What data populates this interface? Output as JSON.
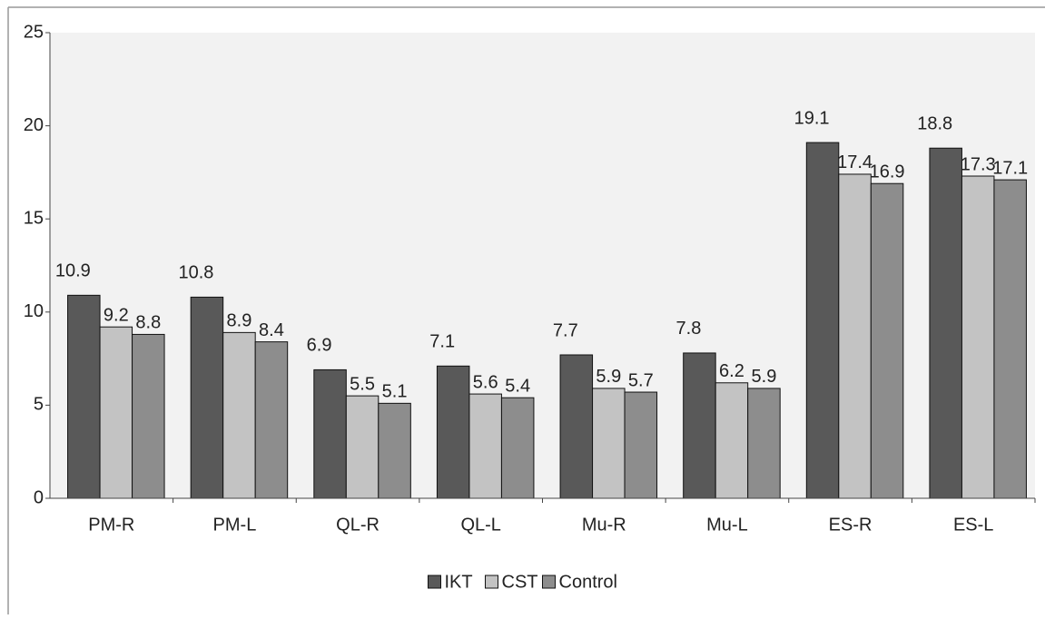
{
  "chart_data": {
    "type": "bar",
    "categories": [
      "PM-R",
      "PM-L",
      "QL-R",
      "QL-L",
      "Mu-R",
      "Mu-L",
      "ES-R",
      "ES-L"
    ],
    "series": [
      {
        "name": "IKT",
        "color": "#595959",
        "values": [
          10.9,
          10.8,
          6.9,
          7.1,
          7.7,
          7.8,
          19.1,
          18.8
        ]
      },
      {
        "name": "CST",
        "color": "#c3c3c3",
        "values": [
          9.2,
          8.9,
          5.5,
          5.6,
          5.9,
          6.2,
          17.4,
          17.3
        ]
      },
      {
        "name": "Control",
        "color": "#8d8d8d",
        "values": [
          8.8,
          8.4,
          5.1,
          5.4,
          5.7,
          5.9,
          16.9,
          17.1
        ]
      }
    ],
    "ylim": [
      0,
      25
    ],
    "yticks": [
      0,
      5,
      10,
      15,
      20,
      25
    ],
    "legend": "bottom"
  }
}
